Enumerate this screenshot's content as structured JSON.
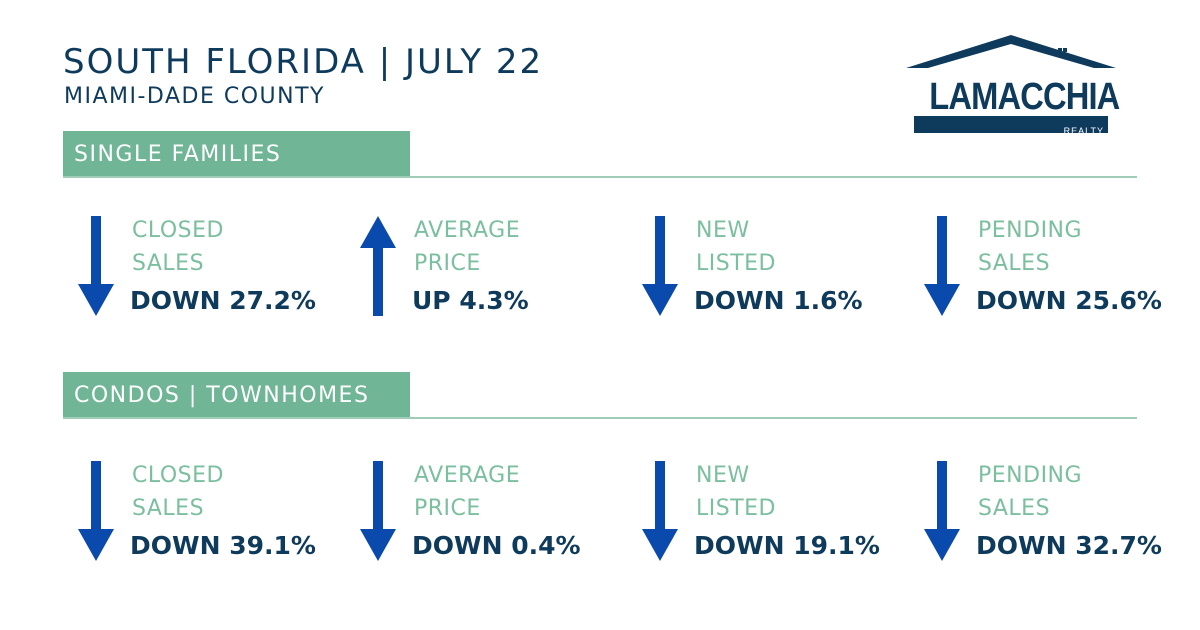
{
  "header": {
    "title": "SOUTH FLORIDA | JULY 22",
    "subtitle": "MIAMI-DADE COUNTY"
  },
  "logo": {
    "name": "LAMACCHIA",
    "tagline": "REALTY",
    "icon": "house-roof-icon"
  },
  "colors": {
    "navy": "#0e3a5c",
    "green": "#6fb596",
    "label_green": "#7bbf9f",
    "arrow_blue": "#0a4aad"
  },
  "sections": [
    {
      "title": "SINGLE FAMILIES",
      "metrics": [
        {
          "label_line1": "CLOSED",
          "label_line2": "SALES",
          "value": "DOWN 27.2%",
          "direction": "down"
        },
        {
          "label_line1": "AVERAGE",
          "label_line2": "PRICE",
          "value": "UP 4.3%",
          "direction": "up"
        },
        {
          "label_line1": "NEW",
          "label_line2": "LISTED",
          "value": "DOWN 1.6%",
          "direction": "down"
        },
        {
          "label_line1": "PENDING",
          "label_line2": "SALES",
          "value": "DOWN 25.6%",
          "direction": "down"
        }
      ]
    },
    {
      "title": "CONDOS | TOWNHOMES",
      "metrics": [
        {
          "label_line1": "CLOSED",
          "label_line2": "SALES",
          "value": "DOWN 39.1%",
          "direction": "down"
        },
        {
          "label_line1": "AVERAGE",
          "label_line2": "PRICE",
          "value": "DOWN 0.4%",
          "direction": "down"
        },
        {
          "label_line1": "NEW",
          "label_line2": "LISTED",
          "value": "DOWN 19.1%",
          "direction": "down"
        },
        {
          "label_line1": "PENDING",
          "label_line2": "SALES",
          "value": "DOWN 32.7%",
          "direction": "down"
        }
      ]
    }
  ]
}
